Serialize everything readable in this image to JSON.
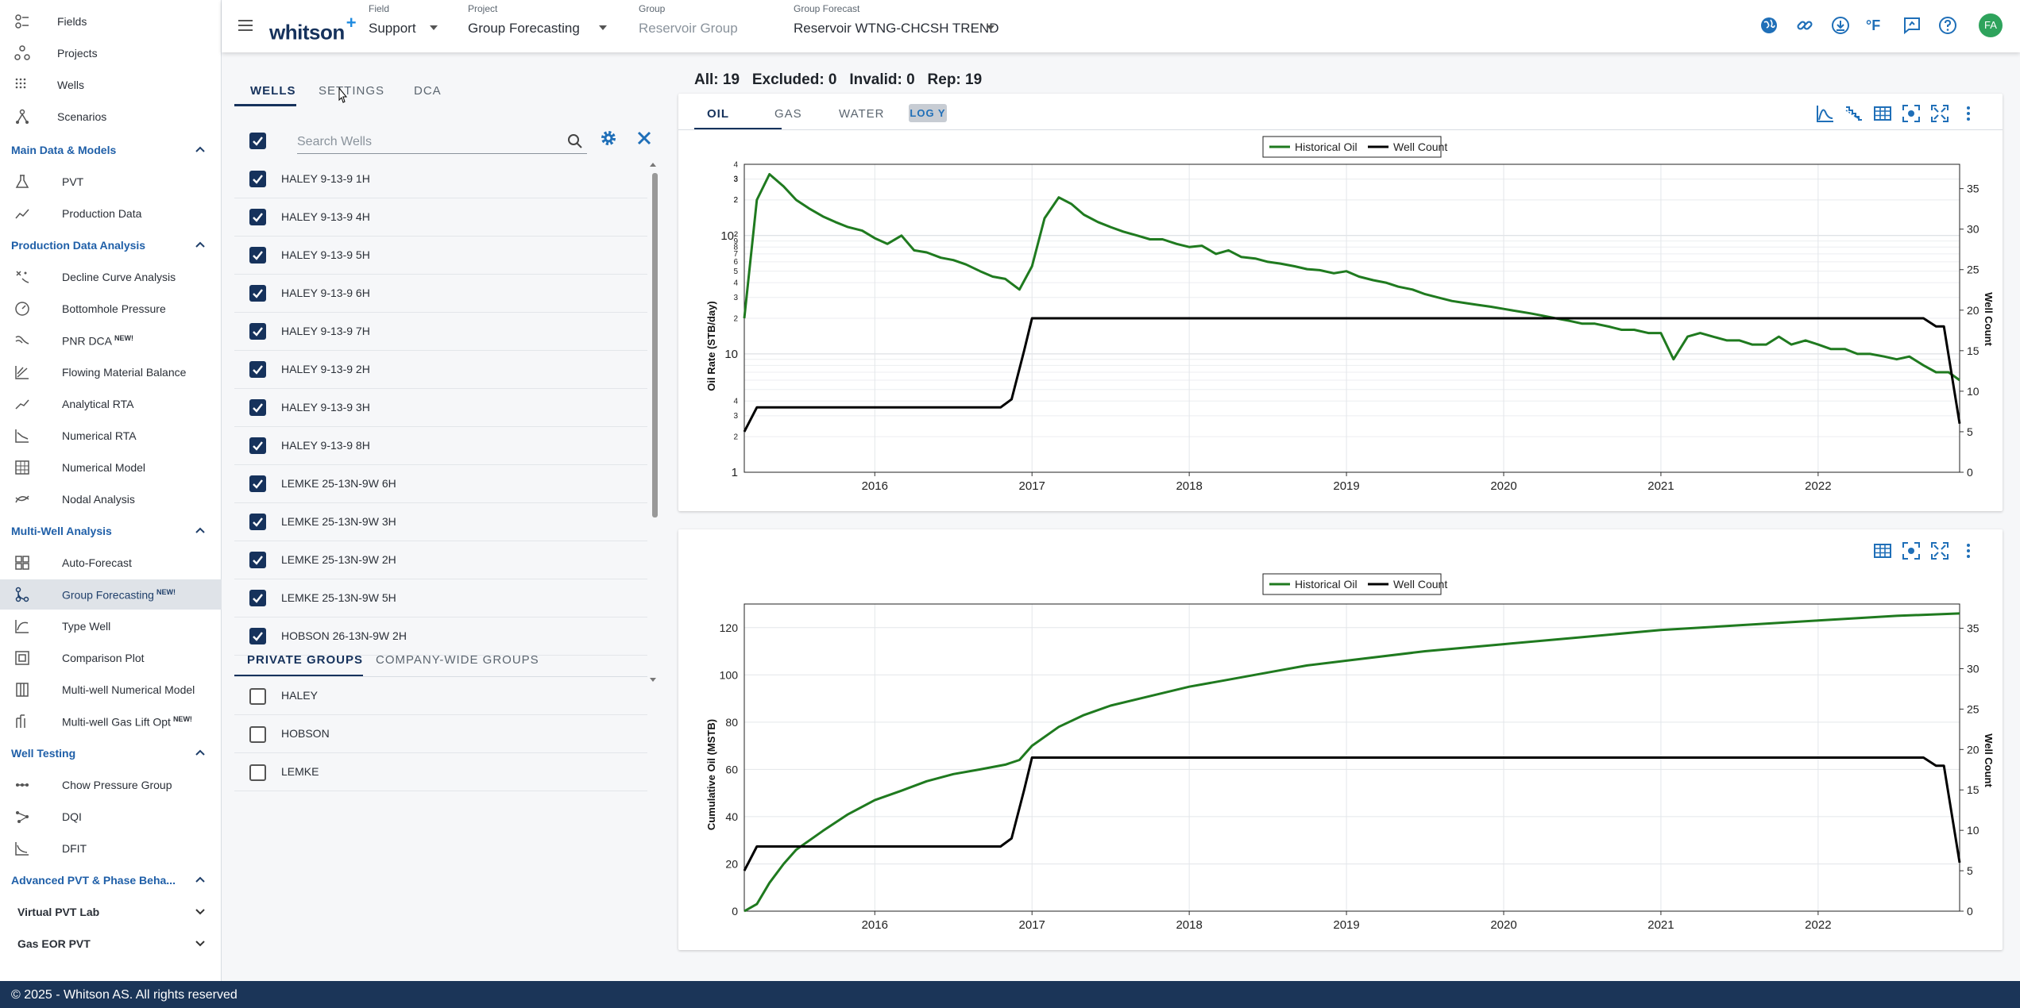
{
  "sidebar": {
    "top_items": [
      {
        "label": "Fields",
        "icon": "fields-icon"
      },
      {
        "label": "Projects",
        "icon": "projects-icon"
      },
      {
        "label": "Wells",
        "icon": "wells-icon"
      },
      {
        "label": "Scenarios",
        "icon": "scenarios-icon"
      }
    ],
    "sections": [
      {
        "label": "Main Data & Models",
        "items": [
          {
            "label": "PVT",
            "new": ""
          },
          {
            "label": "Production Data",
            "new": ""
          }
        ]
      },
      {
        "label": "Production Data Analysis",
        "items": [
          {
            "label": "Decline Curve Analysis",
            "new": ""
          },
          {
            "label": "Bottomhole Pressure",
            "new": ""
          },
          {
            "label": "PNR DCA",
            "new": "NEW!"
          },
          {
            "label": "Flowing Material Balance",
            "new": ""
          },
          {
            "label": "Analytical RTA",
            "new": ""
          },
          {
            "label": "Numerical RTA",
            "new": ""
          },
          {
            "label": "Numerical Model",
            "new": ""
          },
          {
            "label": "Nodal Analysis",
            "new": ""
          }
        ]
      },
      {
        "label": "Multi-Well Analysis",
        "items": [
          {
            "label": "Auto-Forecast",
            "new": ""
          },
          {
            "label": "Group Forecasting",
            "new": "NEW!"
          },
          {
            "label": "Type Well",
            "new": ""
          },
          {
            "label": "Comparison Plot",
            "new": ""
          },
          {
            "label": "Multi-well Numerical Model",
            "new": ""
          },
          {
            "label": "Multi-well Gas Lift Opt",
            "new": "NEW!"
          }
        ]
      },
      {
        "label": "Well Testing",
        "items": [
          {
            "label": "Chow Pressure Group",
            "new": ""
          },
          {
            "label": "DQI",
            "new": ""
          },
          {
            "label": "DFIT",
            "new": ""
          }
        ]
      }
    ],
    "collapsed_sections": [
      "Advanced PVT & Phase Beha...",
      "Virtual PVT Lab",
      "Gas EOR PVT"
    ]
  },
  "footer": {
    "text": "© 2025 - Whitson AS. All rights reserved"
  },
  "header": {
    "logo": "whitson",
    "logo_plus": "+",
    "field_label": "Field",
    "field_value": "Support",
    "project_label": "Project",
    "project_value": "Group Forecasting",
    "group_label": "Group",
    "group_value": "Reservoir Group",
    "forecast_label": "Group Forecast",
    "forecast_value": "Reservoir WTNG-CHCSH TREND",
    "temp_unit": "°F",
    "avatar": "FA"
  },
  "left_panel": {
    "tabs": [
      "WELLS",
      "SETTINGS",
      "DCA"
    ],
    "search_placeholder": "Search Wells",
    "wells": [
      "HALEY 9-13-9 1H",
      "HALEY 9-13-9 4H",
      "HALEY 9-13-9 5H",
      "HALEY 9-13-9 6H",
      "HALEY 9-13-9 7H",
      "HALEY 9-13-9 2H",
      "HALEY 9-13-9 3H",
      "HALEY 9-13-9 8H",
      "LEMKE 25-13N-9W 6H",
      "LEMKE 25-13N-9W 3H",
      "LEMKE 25-13N-9W 2H",
      "LEMKE 25-13N-9W 5H",
      "HOBSON 26-13N-9W 2H"
    ],
    "group_tabs": [
      "PRIVATE GROUPS",
      "COMPANY-WIDE GROUPS"
    ],
    "groups": [
      "HALEY",
      "HOBSON",
      "LEMKE"
    ]
  },
  "counts": {
    "text": "All: 19   Excluded: 0   Invalid: 0   Rep: 19"
  },
  "chart_tabs": [
    "OIL",
    "GAS",
    "WATER"
  ],
  "logy_label": "LOG Y",
  "chart_data": [
    {
      "type": "line",
      "ylabel": "Oil Rate (STB/day)",
      "y2label": "Well Count",
      "ylog": true,
      "ylim": [
        1,
        400
      ],
      "y2lim": [
        0,
        38
      ],
      "xlim": [
        2015.17,
        2022.9
      ],
      "xticks": [
        "2016",
        "2017",
        "2018",
        "2019",
        "2020",
        "2021",
        "2022"
      ],
      "y2ticks": [
        "0",
        "5",
        "10",
        "15",
        "20",
        "25",
        "30",
        "35"
      ],
      "legend": [
        "Historical Oil",
        "Well Count"
      ],
      "legend_position": "top-center",
      "series": [
        {
          "name": "Historical Oil",
          "color": "#1f7a1f",
          "x": [
            2015.17,
            2015.25,
            2015.33,
            2015.42,
            2015.5,
            2015.58,
            2015.67,
            2015.75,
            2015.83,
            2015.92,
            2016.0,
            2016.08,
            2016.17,
            2016.25,
            2016.33,
            2016.42,
            2016.5,
            2016.58,
            2016.67,
            2016.75,
            2016.83,
            2016.92,
            2017.0,
            2017.08,
            2017.17,
            2017.25,
            2017.33,
            2017.42,
            2017.5,
            2017.58,
            2017.67,
            2017.75,
            2017.83,
            2017.92,
            2018.0,
            2018.08,
            2018.17,
            2018.25,
            2018.33,
            2018.42,
            2018.5,
            2018.58,
            2018.67,
            2018.75,
            2018.83,
            2018.92,
            2019.0,
            2019.08,
            2019.17,
            2019.25,
            2019.33,
            2019.42,
            2019.5,
            2019.58,
            2019.67,
            2019.75,
            2019.83,
            2019.92,
            2020.0,
            2020.08,
            2020.17,
            2020.25,
            2020.33,
            2020.42,
            2020.5,
            2020.58,
            2020.67,
            2020.75,
            2020.83,
            2020.92,
            2021.0,
            2021.08,
            2021.17,
            2021.25,
            2021.33,
            2021.42,
            2021.5,
            2021.58,
            2021.67,
            2021.75,
            2021.83,
            2021.92,
            2022.0,
            2022.08,
            2022.17,
            2022.25,
            2022.33,
            2022.42,
            2022.5,
            2022.58,
            2022.67,
            2022.75,
            2022.83,
            2022.9
          ],
          "y": [
            20,
            200,
            330,
            260,
            200,
            170,
            145,
            130,
            118,
            110,
            95,
            85,
            100,
            75,
            72,
            65,
            62,
            57,
            50,
            45,
            43,
            35,
            55,
            140,
            210,
            185,
            150,
            130,
            118,
            108,
            100,
            93,
            93,
            85,
            80,
            82,
            70,
            75,
            66,
            64,
            60,
            58,
            55,
            52,
            51,
            48,
            50,
            45,
            42,
            40,
            37,
            35,
            32,
            30,
            28,
            27,
            26,
            25,
            24,
            23,
            22,
            21,
            20,
            19,
            18,
            18,
            17,
            16,
            16,
            15,
            15,
            9,
            14,
            15,
            14,
            13,
            13,
            12,
            12,
            14,
            12,
            13,
            12,
            11,
            11,
            10,
            10,
            9.5,
            9,
            9.5,
            8,
            7,
            7,
            6
          ]
        },
        {
          "name": "Well Count",
          "color": "#000000",
          "axis": "right",
          "x": [
            2015.17,
            2015.25,
            2015.29,
            2016.25,
            2016.5,
            2016.75,
            2016.8,
            2016.87,
            2016.95,
            2017.0,
            2022.58,
            2022.67,
            2022.75,
            2022.8,
            2022.9
          ],
          "y": [
            5,
            8,
            8,
            8,
            8,
            8,
            8,
            9,
            15,
            19,
            19,
            19,
            18,
            18,
            6
          ]
        }
      ]
    },
    {
      "type": "line",
      "ylabel": "Cumulative Oil (MSTB)",
      "y2label": "Well Count",
      "ylim": [
        0,
        130
      ],
      "y2lim": [
        0,
        38
      ],
      "xlim": [
        2015.17,
        2022.9
      ],
      "xticks": [
        "2016",
        "2017",
        "2018",
        "2019",
        "2020",
        "2021",
        "2022"
      ],
      "yticks": [
        "0",
        "20",
        "40",
        "60",
        "80",
        "100",
        "120"
      ],
      "y2ticks": [
        "0",
        "5",
        "10",
        "15",
        "20",
        "25",
        "30",
        "35"
      ],
      "legend": [
        "Historical Oil",
        "Well Count"
      ],
      "legend_position": "top-center",
      "series": [
        {
          "name": "Historical Oil",
          "color": "#1f7a1f",
          "x": [
            2015.17,
            2015.25,
            2015.33,
            2015.42,
            2015.5,
            2015.67,
            2015.83,
            2016.0,
            2016.17,
            2016.33,
            2016.5,
            2016.67,
            2016.83,
            2016.92,
            2017.0,
            2017.17,
            2017.33,
            2017.5,
            2017.75,
            2018.0,
            2018.25,
            2018.5,
            2018.75,
            2019.0,
            2019.5,
            2020.0,
            2020.5,
            2021.0,
            2021.5,
            2022.0,
            2022.5,
            2022.9
          ],
          "y": [
            0,
            3,
            12,
            20,
            26,
            34,
            41,
            47,
            51,
            55,
            58,
            60,
            62,
            64,
            70,
            78,
            83,
            87,
            91,
            95,
            98,
            101,
            104,
            106,
            110,
            113,
            116,
            119,
            121,
            123,
            125,
            126
          ]
        },
        {
          "name": "Well Count",
          "color": "#000000",
          "axis": "right",
          "x": [
            2015.17,
            2015.25,
            2015.29,
            2016.25,
            2016.5,
            2016.75,
            2016.8,
            2016.87,
            2016.95,
            2017.0,
            2022.58,
            2022.67,
            2022.75,
            2022.8,
            2022.9
          ],
          "y": [
            5,
            8,
            8,
            8,
            8,
            8,
            8,
            9,
            15,
            19,
            19,
            19,
            18,
            18,
            6
          ]
        }
      ]
    }
  ]
}
